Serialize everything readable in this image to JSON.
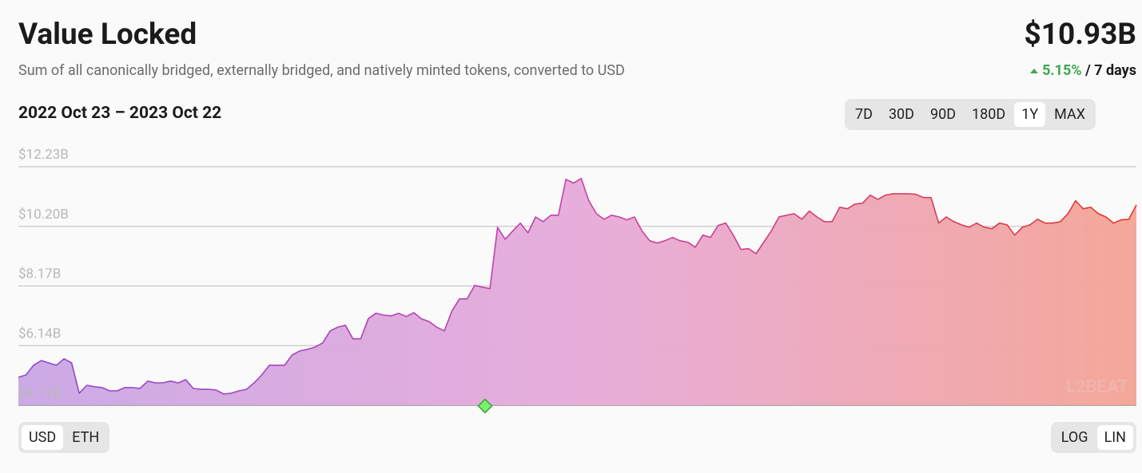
{
  "header": {
    "title": "Value Locked",
    "subtitle": "Sum of all canonically bridged, externally bridged, and natively minted tokens, converted to USD",
    "total": "$10.93B",
    "change": "5.15%",
    "change_period": "/ 7 days"
  },
  "date_range": "2022 Oct 23 – 2023 Oct 22",
  "time_buttons": [
    "7D",
    "30D",
    "90D",
    "180D",
    "1Y",
    "MAX"
  ],
  "selected_time": "1Y",
  "unit_buttons": [
    "USD",
    "ETH"
  ],
  "selected_unit": "USD",
  "scale_buttons": [
    "LOG",
    "LIN"
  ],
  "selected_scale": "LIN",
  "chart_data": {
    "type": "area",
    "values": [
      5.06,
      5.14,
      5.47,
      5.63,
      5.55,
      5.47,
      5.69,
      5.55,
      4.52,
      4.79,
      4.74,
      4.71,
      4.6,
      4.6,
      4.71,
      4.71,
      4.68,
      4.93,
      4.87,
      4.87,
      4.93,
      4.87,
      4.98,
      4.68,
      4.65,
      4.65,
      4.63,
      4.49,
      4.52,
      4.6,
      4.65,
      4.87,
      5.14,
      5.47,
      5.47,
      5.47,
      5.82,
      5.96,
      6.01,
      6.09,
      6.23,
      6.64,
      6.77,
      6.83,
      6.37,
      6.37,
      7.05,
      7.24,
      7.18,
      7.15,
      7.24,
      7.13,
      7.26,
      7.05,
      6.96,
      6.77,
      6.64,
      7.32,
      7.73,
      7.73,
      8.19,
      8.13,
      8.08,
      10.17,
      9.76,
      10.04,
      10.31,
      9.98,
      10.52,
      10.36,
      10.58,
      10.58,
      11.8,
      11.67,
      11.83,
      11.07,
      10.63,
      10.44,
      10.58,
      10.52,
      10.42,
      10.52,
      10.04,
      9.71,
      9.63,
      9.71,
      9.82,
      9.71,
      9.66,
      9.49,
      9.9,
      9.82,
      10.23,
      10.31,
      9.9,
      9.41,
      9.44,
      9.27,
      9.66,
      10.04,
      10.52,
      10.58,
      10.63,
      10.44,
      10.72,
      10.52,
      10.36,
      10.36,
      10.85,
      10.8,
      10.96,
      10.99,
      11.26,
      11.12,
      11.26,
      11.31,
      11.31,
      11.31,
      11.29,
      11.18,
      11.18,
      10.31,
      10.52,
      10.36,
      10.25,
      10.17,
      10.31,
      10.17,
      10.12,
      10.31,
      10.25,
      9.9,
      10.17,
      10.25,
      10.44,
      10.31,
      10.31,
      10.36,
      10.63,
      11.07,
      10.8,
      10.85,
      10.63,
      10.52,
      10.31,
      10.42,
      10.44,
      10.93
    ],
    "ylim": [
      4.11,
      12.23
    ],
    "yticks": [
      {
        "value": 4.11,
        "label": "$4.11B"
      },
      {
        "value": 6.14,
        "label": "$6.14B"
      },
      {
        "value": 8.17,
        "label": "$8.17B"
      },
      {
        "value": 10.2,
        "label": "$10.20B"
      },
      {
        "value": 12.23,
        "label": "$12.23B"
      }
    ],
    "grid": true,
    "colors": [
      "#8d48cf",
      "#c742aa",
      "#e23a2c"
    ],
    "fill_colors": [
      "#c9a6e4",
      "#e6aada",
      "#f4a394"
    ],
    "watermark": "L2BEAT"
  }
}
